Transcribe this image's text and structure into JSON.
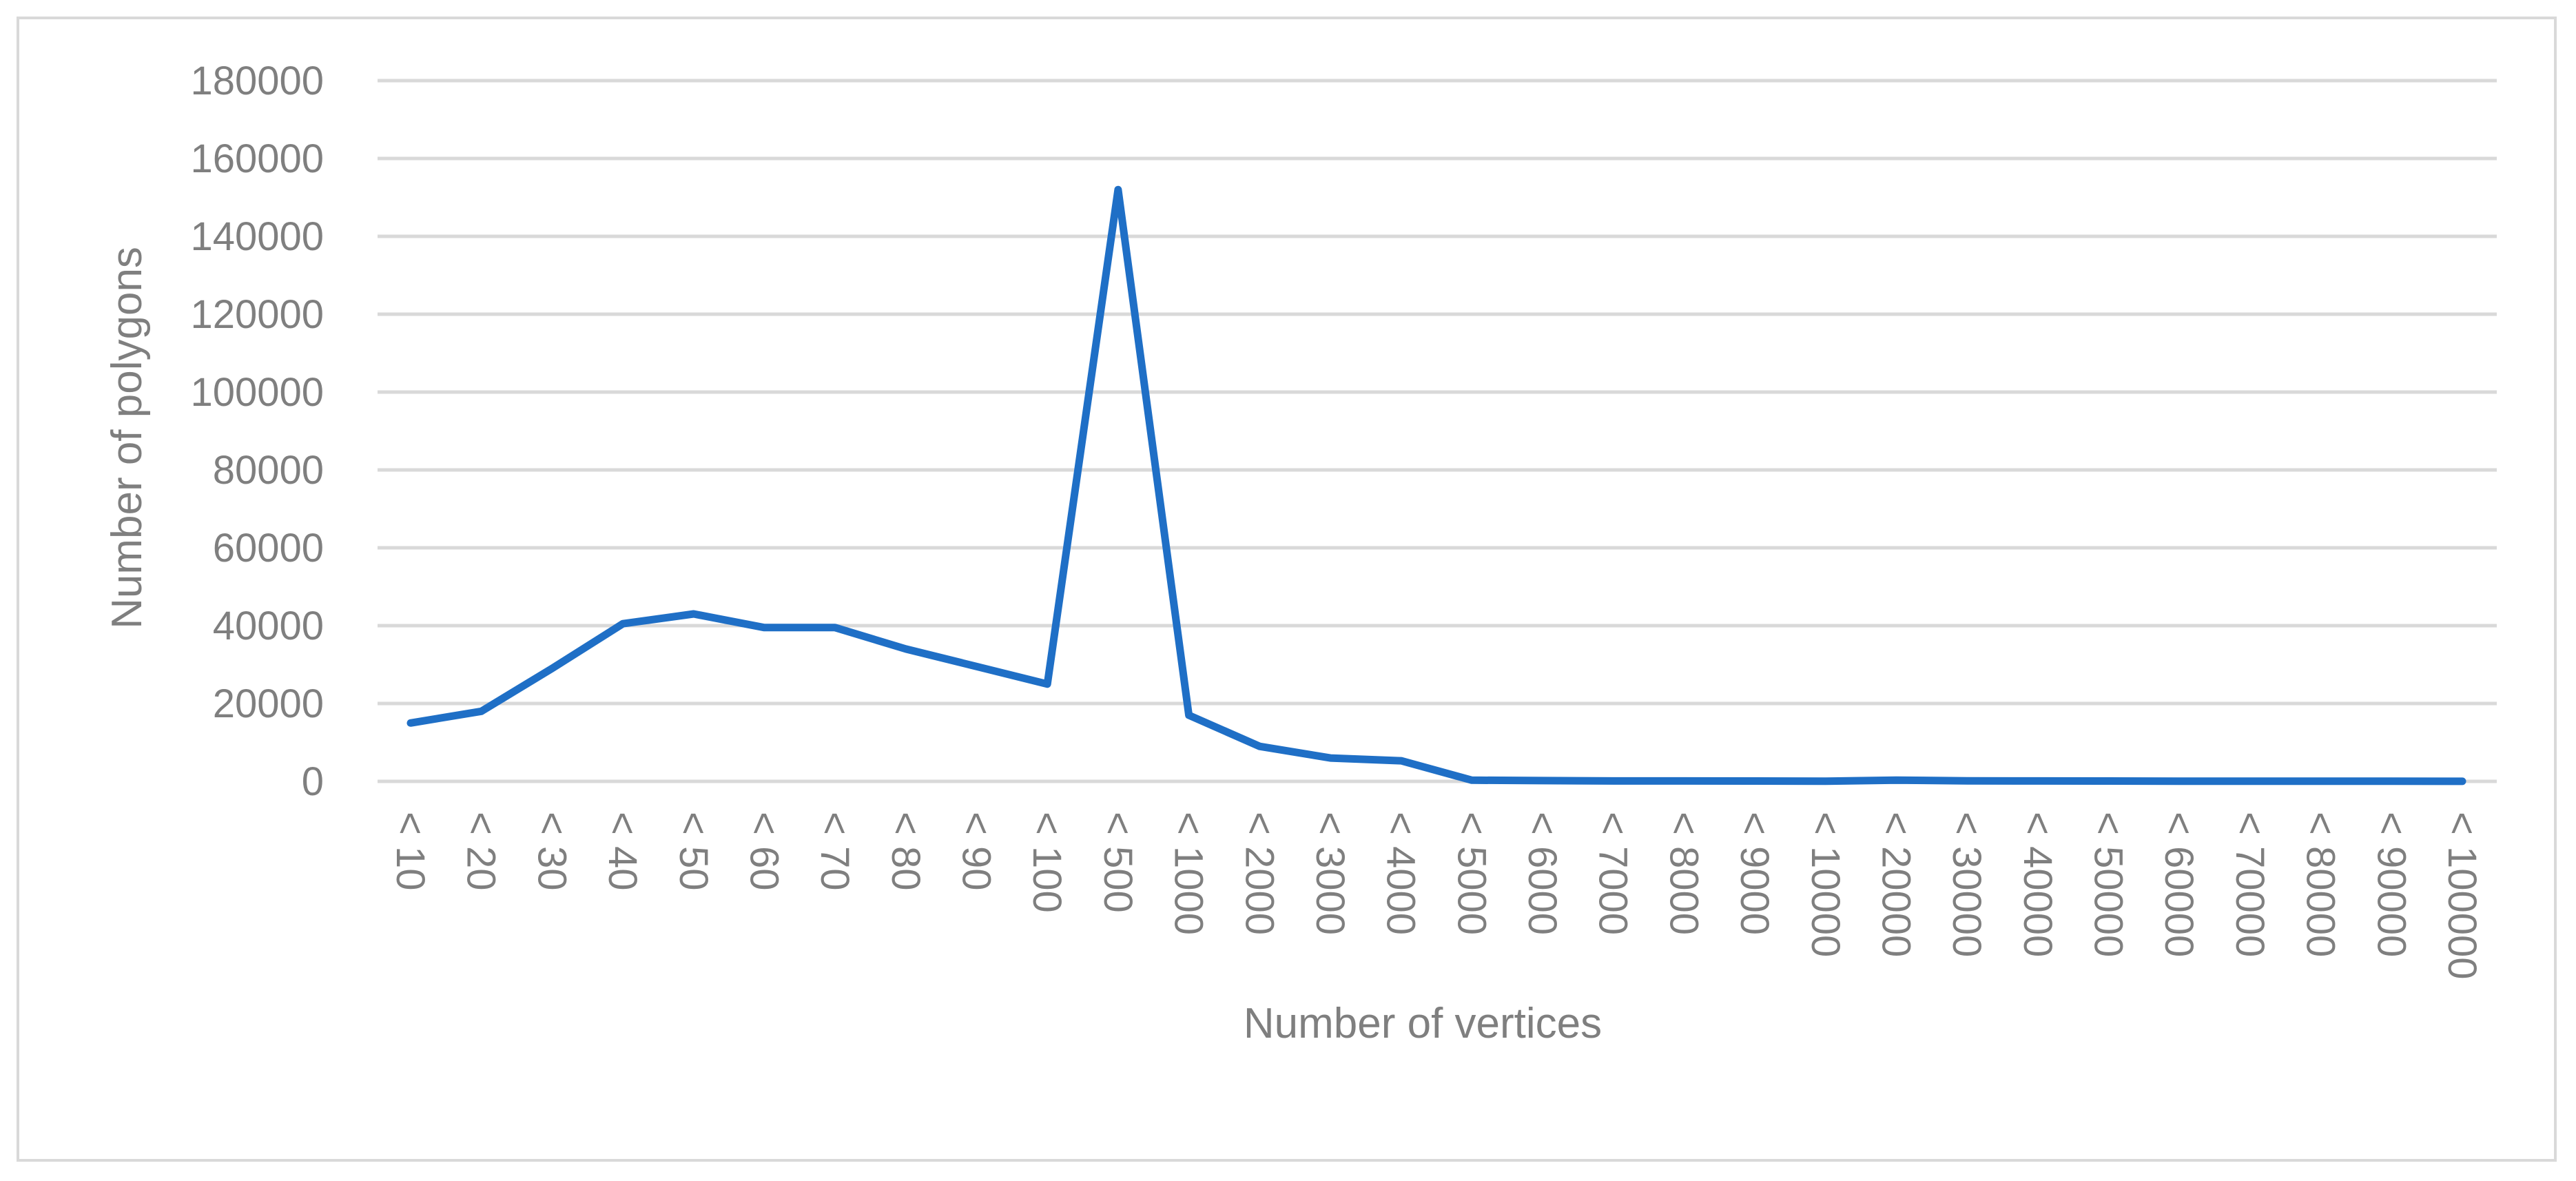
{
  "chart_data": {
    "type": "line",
    "title": "",
    "xlabel": "Number of vertices",
    "ylabel": "Number of polygons",
    "ylim": [
      0,
      180000
    ],
    "y_ticks": [
      0,
      20000,
      40000,
      60000,
      80000,
      100000,
      120000,
      140000,
      160000,
      180000
    ],
    "y_tick_labels": [
      "0",
      "20000",
      "40000",
      "60000",
      "80000",
      "100000",
      "120000",
      "140000",
      "160000",
      "180000"
    ],
    "grid": true,
    "legend": "none",
    "categories": [
      "< 10",
      "< 20",
      "< 30",
      "< 40",
      "< 50",
      "< 60",
      "< 70",
      "< 80",
      "< 90",
      "< 100",
      "< 500",
      "< 1000",
      "< 2000",
      "< 3000",
      "< 4000",
      "< 5000",
      "< 6000",
      "< 7000",
      "< 8000",
      "< 9000",
      "< 10000",
      "< 20000",
      "< 30000",
      "< 40000",
      "< 50000",
      "< 60000",
      "< 70000",
      "< 80000",
      "< 90000",
      "< 100000"
    ],
    "series": [
      {
        "color": "#1f6fc6",
        "values": [
          15000,
          18000,
          29000,
          40500,
          43000,
          39500,
          39500,
          34000,
          29500,
          25000,
          152000,
          17000,
          9000,
          6000,
          5300,
          300,
          200,
          100,
          100,
          80,
          60,
          300,
          150,
          100,
          80,
          60,
          50,
          40,
          30,
          20
        ]
      }
    ]
  }
}
